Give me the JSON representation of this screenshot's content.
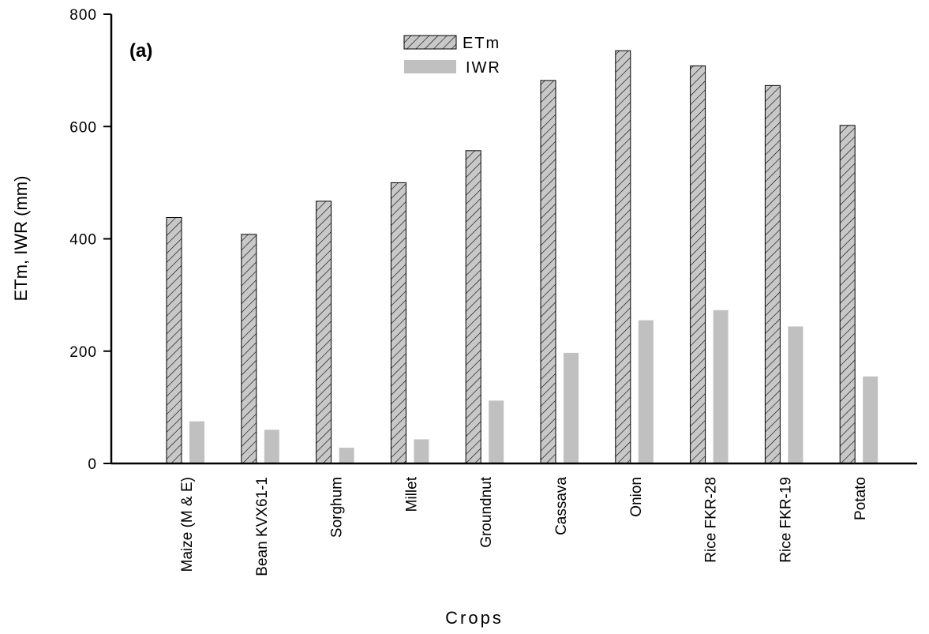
{
  "chart_data": {
    "type": "bar",
    "panel_tag": "(a)",
    "xlabel": "Crops",
    "ylabel": "ETm, IWR (mm)",
    "ylim": [
      0,
      800
    ],
    "yticks": [
      "0",
      "200",
      "400",
      "600",
      "800"
    ],
    "ytick_values": [
      0,
      200,
      400,
      600,
      800
    ],
    "categories": [
      "Maize (M & E)",
      "Bean KVX61-1",
      "Sorghum",
      "Millet",
      "Groundnut",
      "Cassava",
      "Onion",
      "Rice FKR-28",
      "Rice FKR-19",
      "Potato"
    ],
    "series": [
      {
        "name": "ETm",
        "values": [
          438,
          408,
          467,
          500,
          557,
          682,
          735,
          708,
          673,
          602
        ]
      },
      {
        "name": "IWR",
        "values": [
          75,
          60,
          28,
          43,
          112,
          197,
          255,
          273,
          244,
          155
        ]
      }
    ],
    "legend_position": "top-center",
    "grid": false,
    "colors": {
      "etm_fill": "#c8c8c8",
      "etm_hatch": "#000000",
      "iwr_fill": "#c0c0c0",
      "axis": "#000000"
    }
  }
}
